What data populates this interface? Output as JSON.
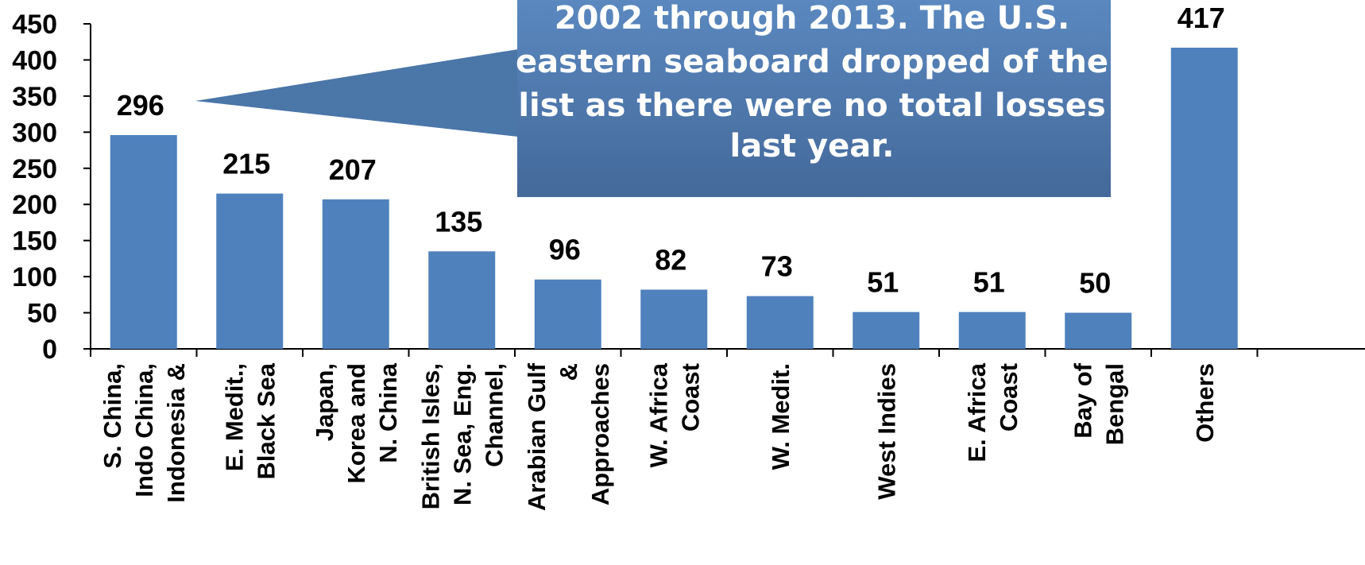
{
  "chart_data": {
    "type": "bar",
    "categories": [
      [
        "S. China,",
        "Indo China,",
        "Indonesia &"
      ],
      [
        "E. Medit.,",
        "Black Sea"
      ],
      [
        "Japan,",
        "Korea and",
        "N. China"
      ],
      [
        "British Isles,",
        "N. Sea, Eng.",
        "Channel,"
      ],
      [
        "Arabian Gulf",
        "&",
        "Approaches"
      ],
      [
        "W. Africa",
        "Coast"
      ],
      [
        "W. Medit."
      ],
      [
        "West Indies"
      ],
      [
        "E. Africa",
        "Coast"
      ],
      [
        "Bay of",
        "Bengal"
      ],
      [
        "Others"
      ]
    ],
    "values": [
      296,
      215,
      207,
      135,
      96,
      82,
      73,
      51,
      51,
      50,
      417
    ],
    "ylim": [
      0,
      450
    ],
    "yticks": [
      0,
      50,
      100,
      150,
      200,
      250,
      300,
      350,
      400,
      450
    ],
    "bar_color": "#4F81BD",
    "grid": false,
    "callout": {
      "lines": [
        "2002 through 2013.  The U.S.",
        "eastern seaboard dropped of the",
        "list as there were no total losses",
        "last year."
      ],
      "fill_color": "#4A76A8"
    }
  }
}
